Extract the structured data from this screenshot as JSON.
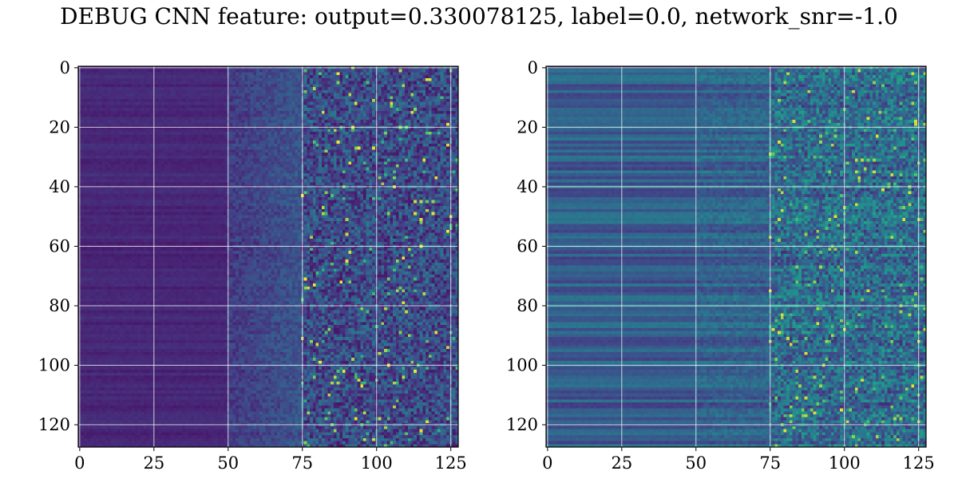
{
  "chart_data": [
    {
      "type": "heatmap",
      "title": "DEBUG CNN feature: output=0.330078125, label=0.0, network_snr=-1.0",
      "panels": [
        {
          "name": "",
          "xlim": [
            0,
            127
          ],
          "ylim": [
            127,
            0
          ],
          "xticks": [
            0,
            25,
            50,
            75,
            100,
            125
          ],
          "yticks": [
            0,
            20,
            40,
            60,
            80,
            100,
            120
          ],
          "grid": true,
          "colormap": "viridis",
          "intensity_profile": "low and smooth for columns 0-50, rising texture 50-75, bright noisy speckle 75-127",
          "base_level": 0.12
        },
        {
          "name": "",
          "xlim": [
            0,
            127
          ],
          "ylim": [
            127,
            0
          ],
          "xticks": [
            0,
            25,
            50,
            75,
            100,
            125
          ],
          "yticks": [
            0,
            20,
            40,
            60,
            80,
            100,
            120
          ],
          "grid": true,
          "colormap": "viridis",
          "intensity_profile": "medium teal horizontal bands for columns 0-75, greenish noisy speckle 75-127",
          "base_level": 0.3
        }
      ]
    }
  ],
  "colors": {
    "grid": "#ffffff",
    "viridis_low": "#440154",
    "viridis_mid": "#21918c",
    "viridis_high": "#fde725"
  }
}
